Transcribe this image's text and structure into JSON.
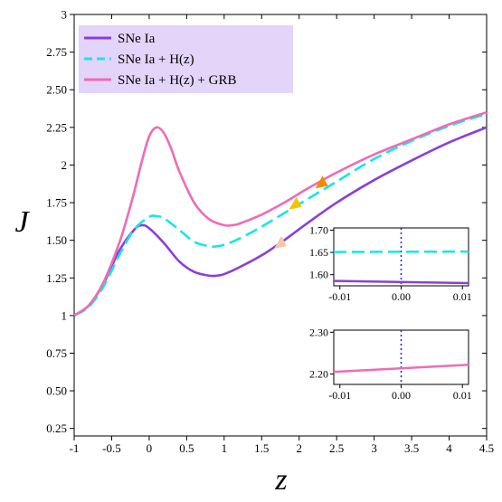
{
  "chart_data": [
    {
      "type": "line",
      "xlabel": "z",
      "ylabel": "J",
      "xlim": [
        -1,
        4.5
      ],
      "ylim": [
        0.2,
        3.0
      ],
      "xticks": [
        "-1",
        "-0.5",
        "0",
        "0.5",
        "1",
        "1.5",
        "2",
        "2.5",
        "3",
        "3.5",
        "4",
        "4.5"
      ],
      "yticks": [
        "0.25",
        "0.50",
        "0.75",
        "1",
        "1.25",
        "1.50",
        "1.75",
        "2",
        "2.25",
        "2.50",
        "2.75",
        "3"
      ],
      "legend_position": "top-left",
      "series": [
        {
          "name": "SNe Ia",
          "color": "#8a3fd9",
          "dash": "solid",
          "x": [
            -1,
            -0.8,
            -0.6,
            -0.4,
            -0.2,
            -0.1,
            0,
            0.2,
            0.4,
            0.6,
            0.8,
            0.9,
            1.0,
            1.2,
            1.5,
            1.8,
            2.1,
            2.5,
            3.0,
            3.5,
            4.0,
            4.5
          ],
          "y": [
            1.0,
            1.07,
            1.22,
            1.43,
            1.57,
            1.6,
            1.58,
            1.48,
            1.36,
            1.29,
            1.265,
            1.265,
            1.275,
            1.32,
            1.4,
            1.5,
            1.61,
            1.75,
            1.9,
            2.03,
            2.15,
            2.25
          ]
        },
        {
          "name": "SNe Ia + H(z)",
          "color": "#17e6e6",
          "dash": "dashed",
          "x": [
            -1,
            -0.8,
            -0.6,
            -0.4,
            -0.2,
            0,
            0.1,
            0.2,
            0.4,
            0.6,
            0.8,
            0.9,
            1.0,
            1.2,
            1.5,
            1.8,
            2.1,
            2.5,
            3.0,
            3.5,
            4.0,
            4.5
          ],
          "y": [
            1.0,
            1.06,
            1.2,
            1.4,
            1.57,
            1.655,
            1.66,
            1.645,
            1.57,
            1.49,
            1.46,
            1.46,
            1.47,
            1.51,
            1.59,
            1.68,
            1.77,
            1.89,
            2.04,
            2.16,
            2.26,
            2.34
          ]
        },
        {
          "name": "SNe Ia + H(z) + GRB",
          "color": "#f06bb4",
          "dash": "solid",
          "x": [
            -1,
            -0.8,
            -0.6,
            -0.4,
            -0.3,
            -0.2,
            -0.1,
            0,
            0.1,
            0.2,
            0.3,
            0.4,
            0.6,
            0.8,
            1.0,
            1.1,
            1.2,
            1.5,
            1.8,
            2.1,
            2.5,
            3.0,
            3.5,
            4.0,
            4.5
          ],
          "y": [
            1.0,
            1.07,
            1.23,
            1.48,
            1.64,
            1.82,
            2.02,
            2.19,
            2.25,
            2.21,
            2.1,
            1.96,
            1.75,
            1.64,
            1.6,
            1.6,
            1.61,
            1.67,
            1.75,
            1.84,
            1.95,
            2.07,
            2.17,
            2.27,
            2.35
          ]
        }
      ],
      "markers": [
        {
          "x": 2.3,
          "y": 1.88,
          "color": "#f08c00"
        },
        {
          "x": 1.95,
          "y": 1.74,
          "color": "#f5c400"
        },
        {
          "x": 1.75,
          "y": 1.48,
          "color": "#f5c6a8"
        }
      ]
    },
    {
      "type": "line",
      "xlim": [
        -0.011,
        0.011
      ],
      "ylim": [
        1.575,
        1.705
      ],
      "xticks": [
        "-0.01",
        "0.00",
        "0.01"
      ],
      "yticks": [
        "1.60",
        "1.65",
        "1.70"
      ],
      "vline_x": 0,
      "series": [
        {
          "color": "#17e6e6",
          "dash": "dashed",
          "x": [
            -0.011,
            0.011
          ],
          "y": [
            1.651,
            1.652
          ]
        },
        {
          "color": "#8a3fd9",
          "dash": "solid",
          "x": [
            -0.011,
            0.011
          ],
          "y": [
            1.586,
            1.581
          ]
        }
      ]
    },
    {
      "type": "line",
      "xlim": [
        -0.011,
        0.011
      ],
      "ylim": [
        2.175,
        2.305
      ],
      "xticks": [
        "-0.01",
        "0.00",
        "0.01"
      ],
      "yticks": [
        "2.20",
        "2.30"
      ],
      "vline_x": 0,
      "series": [
        {
          "color": "#f06bb4",
          "dash": "solid",
          "x": [
            -0.011,
            0.011
          ],
          "y": [
            2.205,
            2.222
          ]
        }
      ]
    }
  ]
}
